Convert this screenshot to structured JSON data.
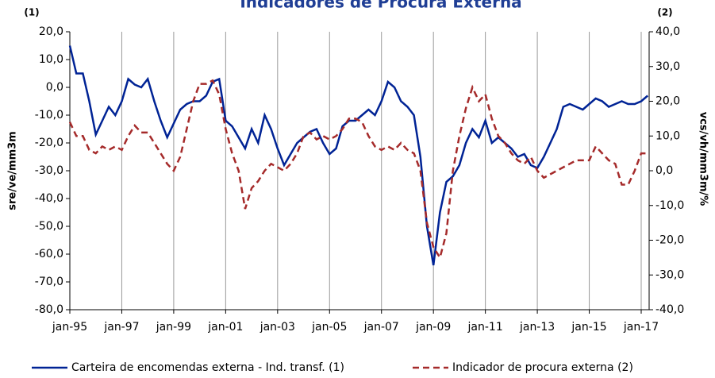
{
  "chart_data": {
    "type": "line",
    "title": "Indicadores de Procura Externa",
    "left_note": "(1)",
    "right_note": "(2)",
    "y_label": "sre/ve/mm3m",
    "y2_label": "vcs/vh/mm3m/%",
    "categories": [
      "jan-95",
      null,
      null,
      null,
      null,
      null,
      null,
      null,
      "jan-97",
      null,
      null,
      null,
      null,
      null,
      null,
      null,
      "jan-99",
      null,
      null,
      null,
      null,
      null,
      null,
      null,
      "jan-01",
      null,
      null,
      null,
      null,
      null,
      null,
      null,
      "jan-03",
      null,
      null,
      null,
      null,
      null,
      null,
      null,
      "jan-05",
      null,
      null,
      null,
      null,
      null,
      null,
      null,
      "jan-07",
      null,
      null,
      null,
      null,
      null,
      null,
      null,
      "jan-09",
      null,
      null,
      null,
      null,
      null,
      null,
      null,
      "jan-11",
      null,
      null,
      null,
      null,
      null,
      null,
      null,
      "jan-13",
      null,
      null,
      null,
      null,
      null,
      null,
      null,
      "jan-15",
      null,
      null,
      null,
      null,
      null,
      null,
      null,
      "jan-17",
      null
    ],
    "series": [
      {
        "name": "Carteira de encomendas externa - Ind. transf. (1)",
        "color": "#002395",
        "dashed": false,
        "values": [
          15,
          5,
          5,
          -5,
          -17,
          -12,
          -7,
          -10,
          -5,
          3,
          1,
          0,
          3,
          -5,
          -12,
          -18,
          -13,
          -8,
          -6,
          -5,
          -5,
          -3,
          2,
          3,
          -12,
          -14,
          -18,
          -22,
          -15,
          -20,
          -10,
          -15,
          -22,
          -28,
          -24,
          -20,
          -18,
          -16,
          -15,
          -20,
          -24,
          -22,
          -14,
          -12,
          -12,
          -10,
          -8,
          -10,
          -5,
          2,
          0,
          -5,
          -7,
          -10,
          -25,
          -50,
          -64,
          -45,
          -34,
          -32,
          -28,
          -20,
          -15,
          -18,
          -12,
          -20,
          -18,
          -20,
          -22,
          -25,
          -24,
          -28,
          -29,
          -25,
          -20,
          -15,
          -7,
          -6,
          -7,
          -8,
          -6,
          -4,
          -5,
          -7,
          -6,
          -5,
          -6,
          -6,
          -5,
          -3
        ]
      },
      {
        "name": "Indicador de procura externa (2)",
        "color": "#a52a2a",
        "dashed": true,
        "axis": "y2",
        "values": [
          14,
          10,
          10,
          6,
          5,
          7,
          6,
          7,
          6,
          10,
          13,
          11,
          11,
          8,
          5,
          2,
          0,
          4,
          12,
          20,
          25,
          25,
          26,
          22,
          12,
          5,
          0,
          -11,
          -5,
          -3,
          0,
          2,
          1,
          0,
          2,
          5,
          10,
          11,
          9,
          10,
          9,
          10,
          12,
          15,
          15,
          14,
          10,
          7,
          6,
          7,
          6,
          8,
          6,
          5,
          0,
          -15,
          -22,
          -25,
          -18,
          0,
          10,
          18,
          24,
          20,
          22,
          15,
          10,
          8,
          5,
          3,
          2,
          4,
          0,
          -2,
          -1,
          0,
          1,
          2,
          3,
          3,
          3,
          7,
          5,
          3,
          2,
          -4,
          -4,
          0,
          5,
          5
        ]
      }
    ],
    "ylim": [
      -80,
      20
    ],
    "yticks": [
      {
        "value": -80,
        "label": "-80,0"
      },
      {
        "value": -70,
        "label": "-70,0"
      },
      {
        "value": -60,
        "label": "-60,0"
      },
      {
        "value": -50,
        "label": "-50,0"
      },
      {
        "value": -40,
        "label": "-40,0"
      },
      {
        "value": -30,
        "label": "-30,0"
      },
      {
        "value": -20,
        "label": "-20,0"
      },
      {
        "value": -10,
        "label": "-10,0"
      },
      {
        "value": 0,
        "label": "0,0"
      },
      {
        "value": 10,
        "label": "10,0"
      },
      {
        "value": 20,
        "label": "20,0"
      }
    ],
    "y2lim": [
      -40,
      40
    ],
    "y2ticks": [
      {
        "value": -40,
        "label": "-40,0"
      },
      {
        "value": -30,
        "label": "-30,0"
      },
      {
        "value": -20,
        "label": "-20,0"
      },
      {
        "value": -10,
        "label": "-10,0"
      },
      {
        "value": 0,
        "label": "0,0"
      },
      {
        "value": 10,
        "label": "10,0"
      },
      {
        "value": 20,
        "label": "20,0"
      },
      {
        "value": 30,
        "label": "30,0"
      },
      {
        "value": 40,
        "label": "40,0"
      }
    ],
    "grid": true
  }
}
